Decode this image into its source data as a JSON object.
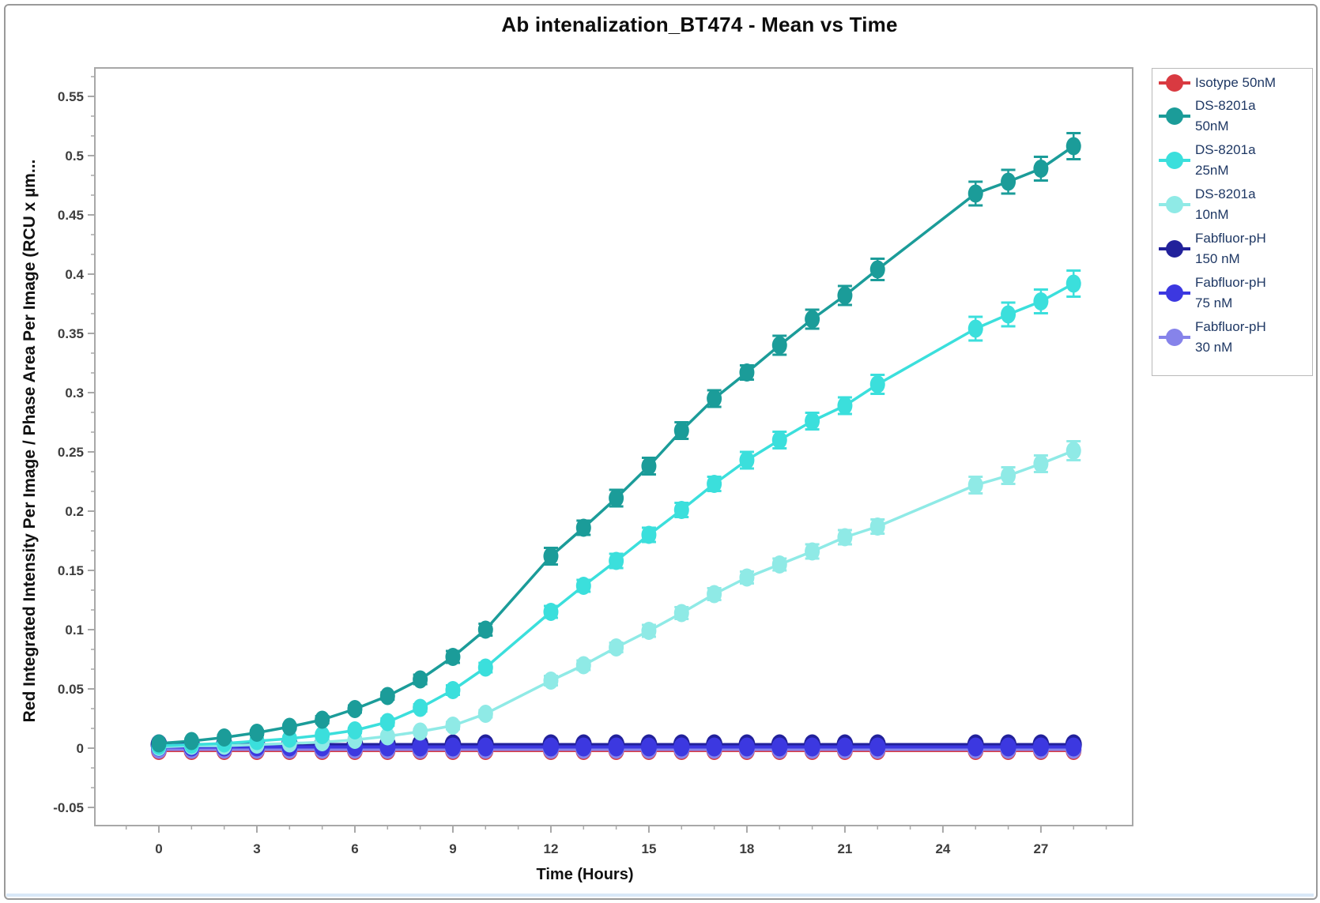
{
  "window": {
    "background_color": "#ffffff",
    "border_color": "#9a9a9a"
  },
  "chart_data": {
    "type": "line",
    "title": "Ab intenalization_BT474 - Mean vs Time",
    "xlabel": "Time (Hours)",
    "ylabel": "Red Integrated Intensity Per Image / Phase Area Per Image (RCU x µm...",
    "grid": false,
    "legend_position": "right",
    "xlim": [
      -2,
      30
    ],
    "ylim": [
      -0.065,
      0.574
    ],
    "x_tick_values": [
      0,
      3,
      6,
      9,
      12,
      15,
      18,
      21,
      24,
      27
    ],
    "x_tick_labels": [
      "0",
      "3",
      "6",
      "9",
      "12",
      "15",
      "18",
      "21",
      "24",
      "27"
    ],
    "y_tick_values": [
      -0.05,
      0,
      0.05,
      0.1,
      0.15,
      0.2,
      0.25,
      0.3,
      0.35,
      0.4,
      0.45,
      0.5,
      0.55
    ],
    "y_tick_labels": [
      "-0.05",
      "0",
      "0.05",
      "0.1",
      "0.15",
      "0.2",
      "0.25",
      "0.3",
      "0.35",
      "0.4",
      "0.45",
      "0.5",
      "0.55"
    ],
    "x": [
      0,
      1,
      2,
      3,
      4,
      5,
      6,
      7,
      8,
      9,
      10,
      12,
      13,
      14,
      15,
      16,
      17,
      18,
      19,
      20,
      21,
      22,
      25,
      26,
      27,
      28
    ],
    "series": [
      {
        "name": "Isotype 50nM",
        "label_lines": [
          "Isotype 50nM"
        ],
        "color": "#d93a41",
        "values": [
          -0.002,
          -0.002,
          -0.002,
          -0.002,
          -0.002,
          -0.002,
          -0.002,
          -0.002,
          -0.002,
          -0.002,
          -0.002,
          -0.002,
          -0.002,
          -0.002,
          -0.002,
          -0.002,
          -0.002,
          -0.002,
          -0.002,
          -0.002,
          -0.002,
          -0.002,
          -0.002,
          -0.002,
          -0.002,
          -0.002
        ],
        "errors": [
          0.001,
          0.001,
          0.001,
          0.001,
          0.001,
          0.001,
          0.001,
          0.001,
          0.001,
          0.001,
          0.001,
          0.001,
          0.001,
          0.001,
          0.001,
          0.001,
          0.001,
          0.001,
          0.001,
          0.001,
          0.001,
          0.001,
          0.001,
          0.001,
          0.001,
          0.001
        ]
      },
      {
        "name": "DS-8201a 50nM",
        "label_lines": [
          "DS-8201a",
          "50nM"
        ],
        "color": "#1b9c99",
        "values": [
          0.004,
          0.006,
          0.009,
          0.013,
          0.018,
          0.024,
          0.033,
          0.044,
          0.058,
          0.077,
          0.1,
          0.162,
          0.186,
          0.211,
          0.238,
          0.268,
          0.295,
          0.317,
          0.34,
          0.362,
          0.382,
          0.404,
          0.468,
          0.478,
          0.489,
          0.508
        ],
        "errors": [
          0.002,
          0.002,
          0.002,
          0.002,
          0.002,
          0.003,
          0.003,
          0.003,
          0.004,
          0.005,
          0.005,
          0.007,
          0.006,
          0.007,
          0.007,
          0.007,
          0.007,
          0.006,
          0.008,
          0.008,
          0.008,
          0.009,
          0.01,
          0.01,
          0.01,
          0.011
        ]
      },
      {
        "name": "DS-8201a 25nM",
        "label_lines": [
          "DS-8201a",
          "25nM"
        ],
        "color": "#3bdfdc",
        "values": [
          0.002,
          0.003,
          0.004,
          0.006,
          0.008,
          0.011,
          0.015,
          0.022,
          0.034,
          0.049,
          0.068,
          0.115,
          0.137,
          0.158,
          0.18,
          0.201,
          0.223,
          0.243,
          0.26,
          0.276,
          0.289,
          0.307,
          0.354,
          0.366,
          0.377,
          0.392
        ],
        "errors": [
          0.001,
          0.001,
          0.001,
          0.002,
          0.002,
          0.002,
          0.002,
          0.003,
          0.003,
          0.004,
          0.004,
          0.005,
          0.005,
          0.006,
          0.006,
          0.006,
          0.006,
          0.007,
          0.007,
          0.007,
          0.007,
          0.008,
          0.01,
          0.01,
          0.01,
          0.011
        ]
      },
      {
        "name": "DS-8201a 10nM",
        "label_lines": [
          "DS-8201a",
          "10nM"
        ],
        "color": "#8feae6",
        "values": [
          0.001,
          0.002,
          0.002,
          0.003,
          0.004,
          0.005,
          0.007,
          0.01,
          0.014,
          0.019,
          0.029,
          0.057,
          0.07,
          0.085,
          0.099,
          0.114,
          0.13,
          0.144,
          0.155,
          0.166,
          0.178,
          0.187,
          0.222,
          0.23,
          0.24,
          0.251
        ],
        "errors": [
          0.001,
          0.001,
          0.001,
          0.001,
          0.001,
          0.002,
          0.002,
          0.002,
          0.002,
          0.003,
          0.003,
          0.004,
          0.004,
          0.004,
          0.005,
          0.005,
          0.005,
          0.005,
          0.005,
          0.006,
          0.006,
          0.006,
          0.007,
          0.007,
          0.007,
          0.008
        ]
      },
      {
        "name": "Fabfluor-pH 150 nM",
        "label_lines": [
          "Fabfluor-pH",
          "150 nM"
        ],
        "color": "#22219b",
        "values": [
          0.003,
          0.003,
          0.003,
          0.003,
          0.003,
          0.003,
          0.003,
          0.003,
          0.003,
          0.003,
          0.003,
          0.003,
          0.003,
          0.003,
          0.003,
          0.003,
          0.003,
          0.003,
          0.003,
          0.003,
          0.003,
          0.003,
          0.003,
          0.003,
          0.003,
          0.003
        ],
        "errors": [
          0.001,
          0.001,
          0.001,
          0.001,
          0.001,
          0.001,
          0.001,
          0.001,
          0.001,
          0.001,
          0.001,
          0.001,
          0.001,
          0.001,
          0.001,
          0.001,
          0.001,
          0.001,
          0.001,
          0.001,
          0.001,
          0.001,
          0.001,
          0.001,
          0.001,
          0.001
        ]
      },
      {
        "name": "Fabfluor-pH 75 nM",
        "label_lines": [
          "Fabfluor-pH",
          "75 nM"
        ],
        "color": "#3c38e0",
        "values": [
          0.001,
          0.001,
          0.001,
          0.001,
          0.001,
          0.001,
          0.001,
          0.001,
          0.001,
          0.001,
          0.001,
          0.001,
          0.001,
          0.001,
          0.001,
          0.001,
          0.001,
          0.001,
          0.001,
          0.001,
          0.001,
          0.001,
          0.001,
          0.001,
          0.001,
          0.001
        ],
        "errors": [
          0.001,
          0.001,
          0.001,
          0.001,
          0.001,
          0.001,
          0.001,
          0.001,
          0.001,
          0.001,
          0.001,
          0.001,
          0.001,
          0.001,
          0.001,
          0.001,
          0.001,
          0.001,
          0.001,
          0.001,
          0.001,
          0.001,
          0.001,
          0.001,
          0.001,
          0.001
        ]
      },
      {
        "name": "Fabfluor-pH 30 nM",
        "label_lines": [
          "Fabfluor-pH",
          "30 nM"
        ],
        "color": "#8683ea",
        "values": [
          -0.001,
          -0.001,
          -0.001,
          -0.001,
          -0.001,
          -0.001,
          -0.001,
          -0.001,
          -0.001,
          -0.001,
          -0.001,
          -0.001,
          -0.001,
          -0.001,
          -0.001,
          -0.001,
          -0.001,
          -0.001,
          -0.001,
          -0.001,
          -0.001,
          -0.001,
          -0.001,
          -0.001,
          -0.001,
          -0.001
        ],
        "errors": [
          0.001,
          0.001,
          0.001,
          0.001,
          0.001,
          0.001,
          0.001,
          0.001,
          0.001,
          0.001,
          0.001,
          0.001,
          0.001,
          0.001,
          0.001,
          0.001,
          0.001,
          0.001,
          0.001,
          0.001,
          0.001,
          0.001,
          0.001,
          0.001,
          0.001,
          0.001
        ]
      }
    ]
  }
}
